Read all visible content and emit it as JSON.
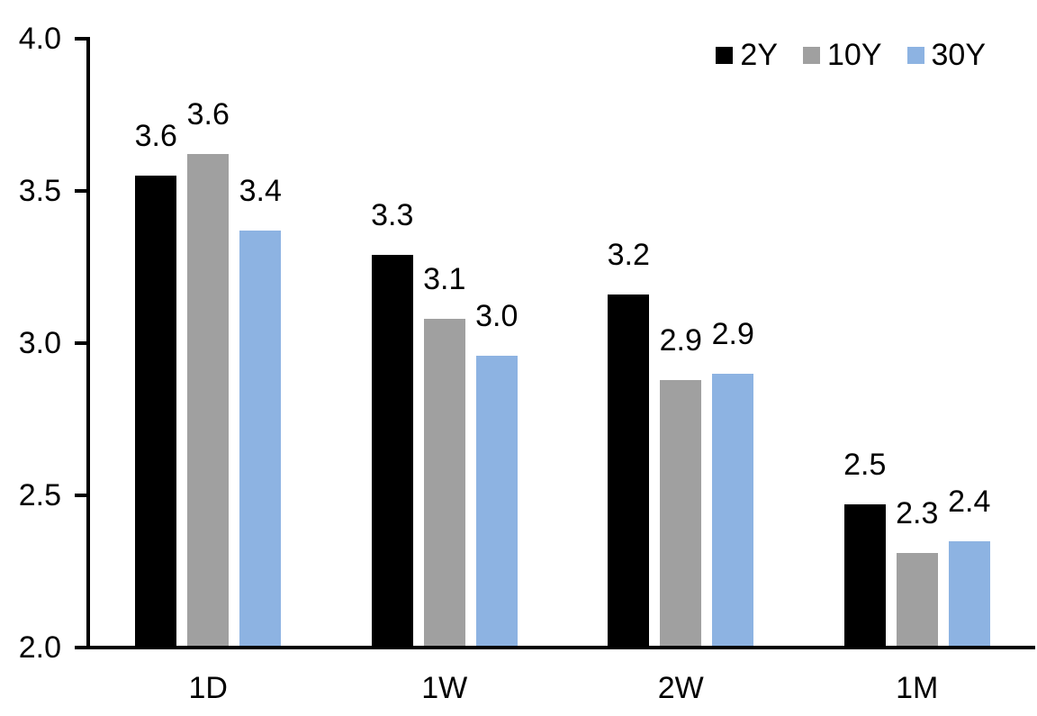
{
  "chart_data": {
    "type": "bar",
    "title": "",
    "xlabel": "",
    "ylabel": "",
    "categories": [
      "1D",
      "1W",
      "2W",
      "1M"
    ],
    "series": [
      {
        "name": "2Y",
        "color": "#000000",
        "values": [
          3.55,
          3.29,
          3.16,
          2.47
        ],
        "labels": [
          "3.6",
          "3.3",
          "3.2",
          "2.5"
        ]
      },
      {
        "name": "10Y",
        "color": "#A0A0A0",
        "values": [
          3.62,
          3.08,
          2.88,
          2.31
        ],
        "labels": [
          "3.6",
          "3.1",
          "2.9",
          "2.3"
        ]
      },
      {
        "name": "30Y",
        "color": "#8DB3E2",
        "values": [
          3.37,
          2.96,
          2.9,
          2.35
        ],
        "labels": [
          "3.4",
          "3.0",
          "2.9",
          "2.4"
        ]
      }
    ],
    "ylim": [
      2.0,
      4.0
    ],
    "yticks": [
      "2.0",
      "2.5",
      "3.0",
      "3.5",
      "4.0"
    ],
    "ytick_values": [
      2.0,
      2.5,
      3.0,
      3.5,
      4.0
    ],
    "grid": false,
    "legend_position": "top-right",
    "axis_color": "#000000",
    "background": "#FFFFFF"
  }
}
